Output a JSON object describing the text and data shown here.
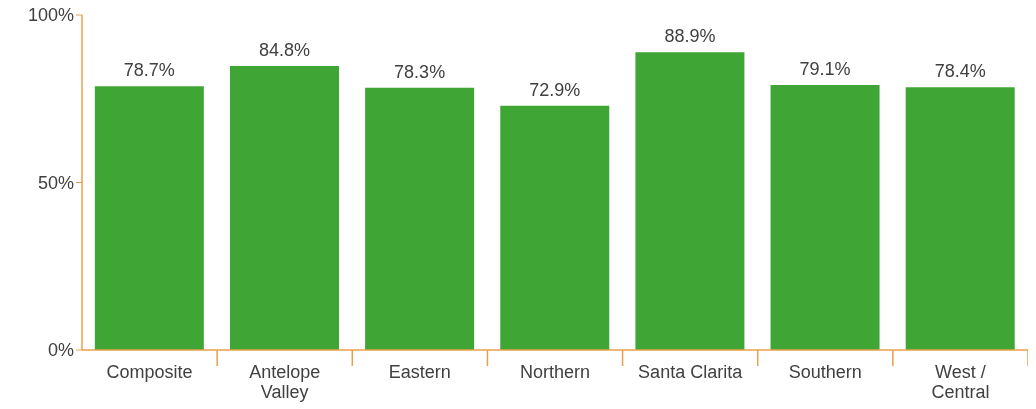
{
  "chart_data": {
    "type": "bar",
    "categories": [
      "Composite",
      "Antelope Valley",
      "Eastern",
      "Northern",
      "Santa Clarita",
      "Southern",
      "West / Central"
    ],
    "values": [
      78.7,
      84.8,
      78.3,
      72.9,
      88.9,
      79.1,
      78.4
    ],
    "value_labels": [
      "78.7%",
      "84.8%",
      "78.3%",
      "72.9%",
      "88.9%",
      "79.1%",
      "78.4%"
    ],
    "color": "#3fa535",
    "ylim": [
      0,
      100
    ],
    "yticks": [
      {
        "value": 0,
        "label": "0%"
      },
      {
        "value": 50,
        "label": "50%"
      },
      {
        "value": 100,
        "label": "100%"
      }
    ],
    "grid": false,
    "legend": false
  }
}
